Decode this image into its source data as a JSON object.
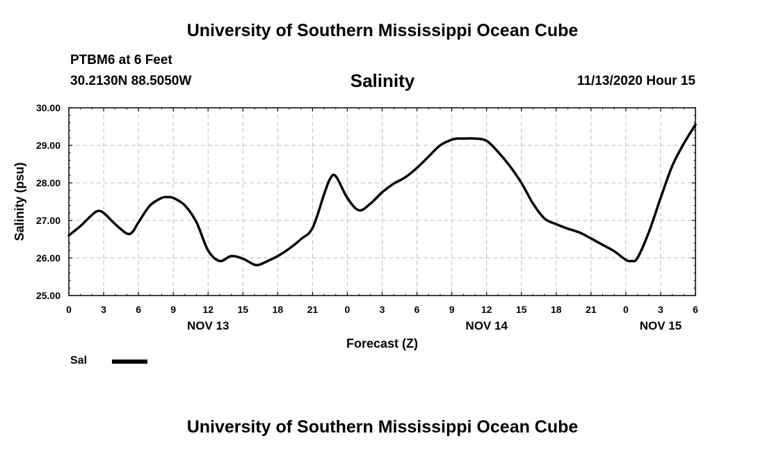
{
  "header": {
    "title": "University of Southern Mississippi Ocean Cube",
    "station": "PTBM6 at 6 Feet",
    "coords": "30.2130N 88.5050W",
    "plot_title": "Salinity",
    "timestamp": "11/13/2020 Hour 15"
  },
  "legend": {
    "label": "Sal"
  },
  "footer": {
    "title": "University of Southern Mississippi Ocean Cube"
  },
  "chart_data": {
    "type": "line",
    "title": "Salinity",
    "xlabel": "Forecast (Z)",
    "ylabel": "Salinity (psu)",
    "ylim": [
      25,
      30
    ],
    "xlim": [
      0,
      54
    ],
    "x_unit": "hours from 2020-11-13 00Z",
    "grid": true,
    "legend_position": "bottom-left",
    "y_ticks": [
      "25.00",
      "26.00",
      "27.00",
      "28.00",
      "29.00",
      "30.00"
    ],
    "x_ticks": [
      "0",
      "3",
      "6",
      "9",
      "12",
      "15",
      "18",
      "21",
      "0",
      "3",
      "6",
      "9",
      "12",
      "15",
      "18",
      "21",
      "0",
      "3",
      "6"
    ],
    "date_labels": [
      {
        "text": "NOV 13",
        "hour": 12
      },
      {
        "text": "NOV 14",
        "hour": 36
      },
      {
        "text": "NOV 15",
        "hour": 51
      }
    ],
    "series": [
      {
        "name": "Sal",
        "color": "#000000",
        "x": [
          0,
          1,
          2,
          2.5,
          3,
          4,
          5,
          5.5,
          6,
          7,
          8,
          8.5,
          9,
          10,
          11,
          12,
          13,
          14,
          15,
          16,
          16.5,
          17,
          18,
          19,
          20,
          21,
          22,
          22.5,
          23,
          24,
          25,
          26,
          27,
          28,
          29,
          30,
          31,
          32,
          33,
          33.5,
          34,
          35,
          36,
          37,
          38,
          39,
          40,
          41,
          42,
          43,
          44,
          45,
          46,
          47,
          48,
          48.5,
          49,
          50,
          51,
          52,
          53,
          54
        ],
        "values": [
          26.6,
          26.85,
          27.15,
          27.25,
          27.2,
          26.9,
          26.65,
          26.7,
          26.95,
          27.4,
          27.6,
          27.62,
          27.6,
          27.4,
          26.95,
          26.2,
          25.92,
          26.05,
          25.98,
          25.82,
          25.83,
          25.9,
          26.05,
          26.25,
          26.5,
          26.8,
          27.7,
          28.1,
          28.18,
          27.6,
          27.27,
          27.45,
          27.75,
          27.98,
          28.15,
          28.4,
          28.7,
          29.0,
          29.15,
          29.18,
          29.18,
          29.18,
          29.12,
          28.82,
          28.45,
          28.0,
          27.45,
          27.05,
          26.9,
          26.78,
          26.68,
          26.52,
          26.35,
          26.18,
          25.95,
          25.92,
          26.0,
          26.7,
          27.6,
          28.45,
          29.05,
          29.55
        ]
      }
    ]
  }
}
